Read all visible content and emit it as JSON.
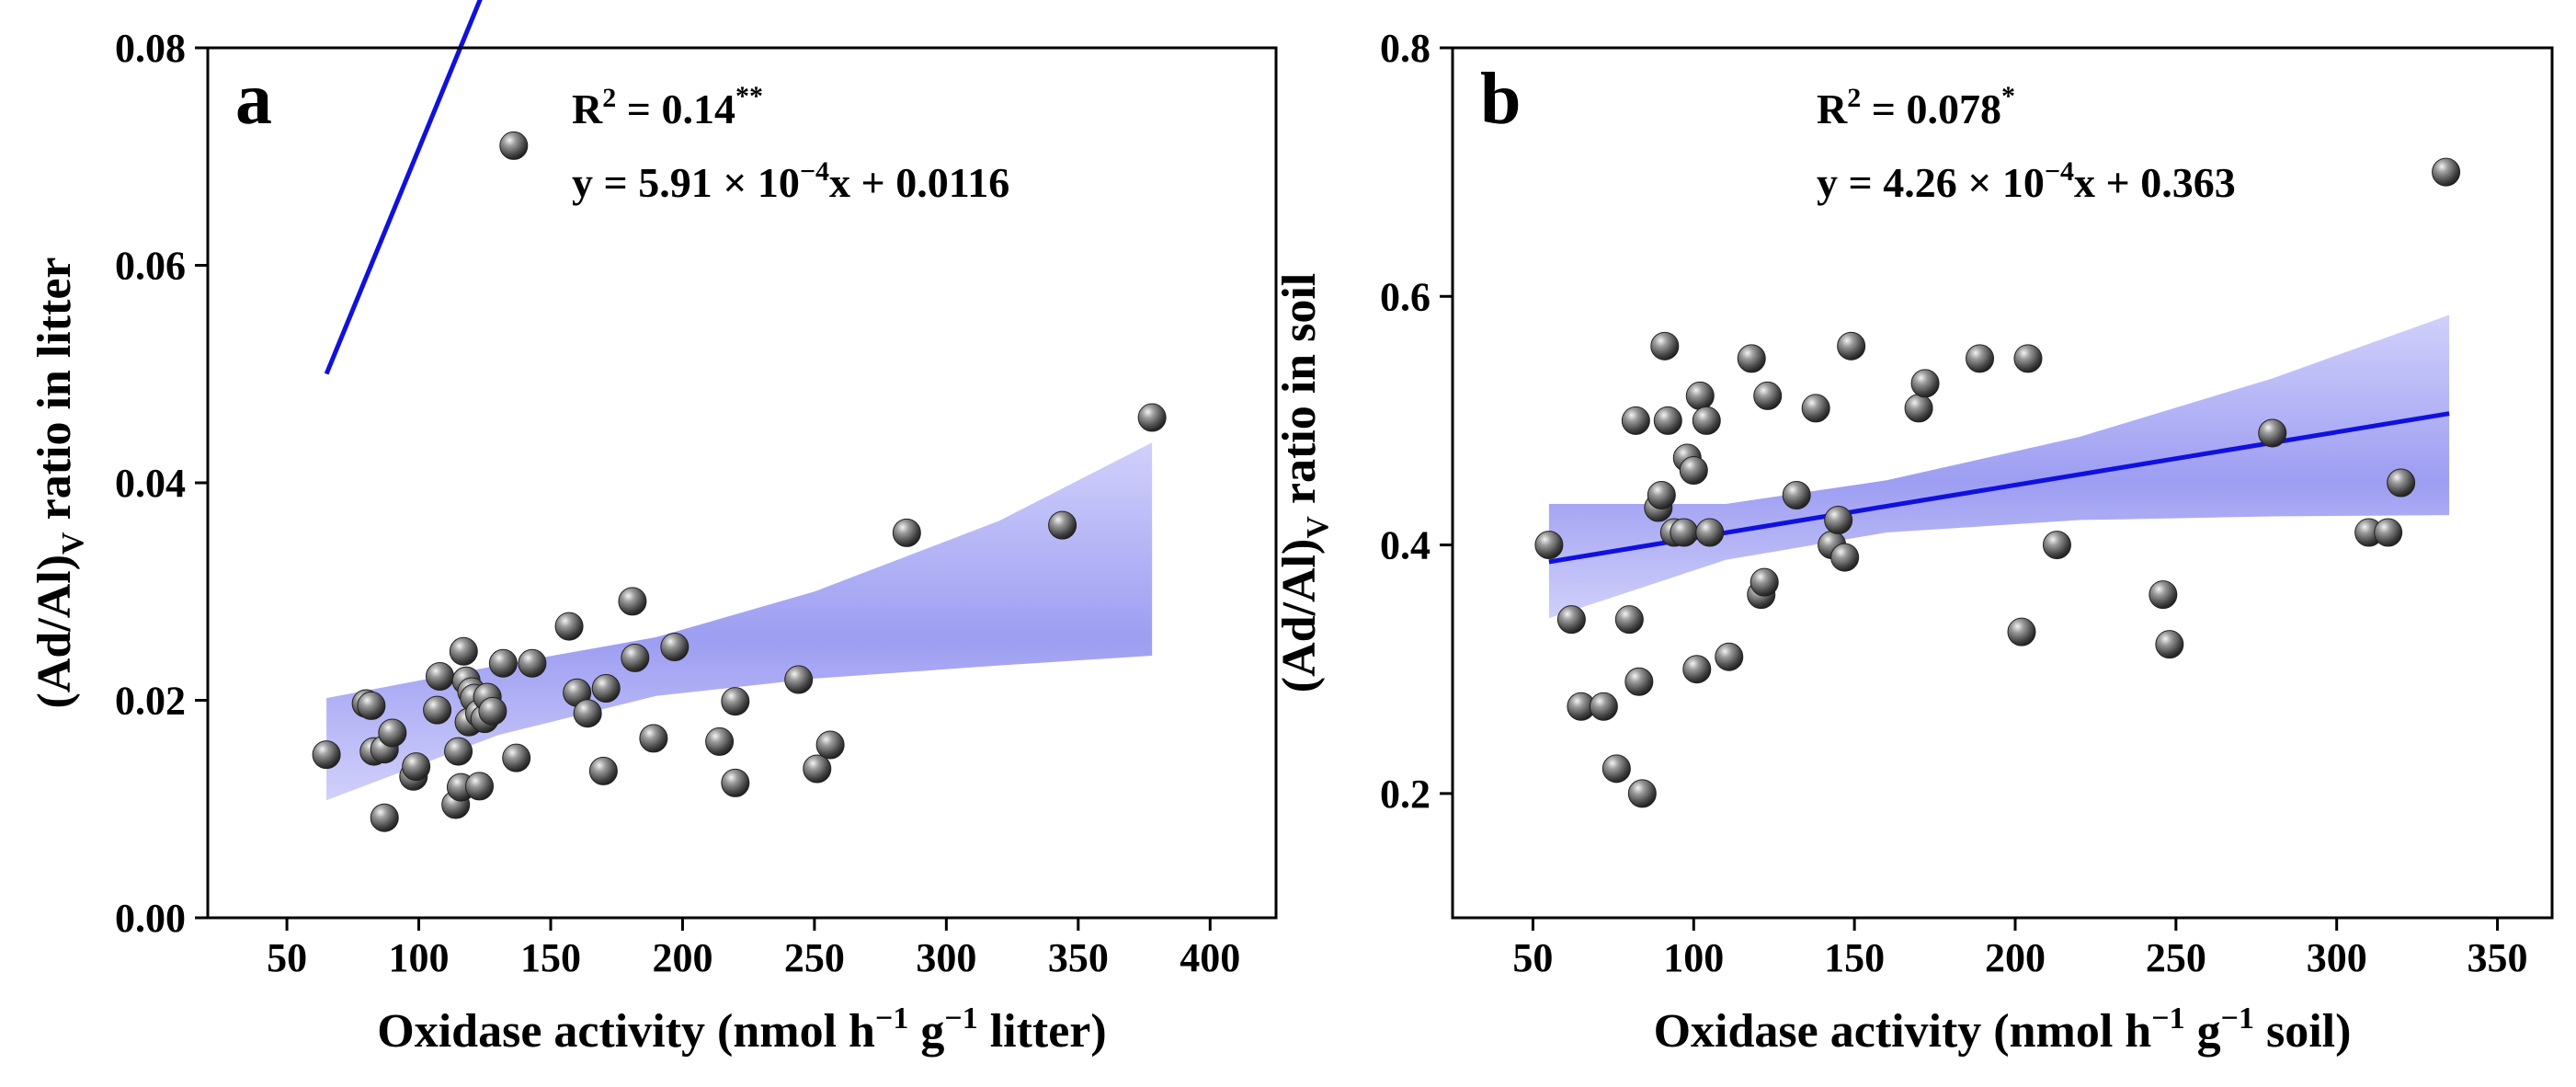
{
  "chart_data": [
    {
      "type": "scatter",
      "panel_label": "a",
      "xlabel_parts": [
        "Oxidase activity (nmol h",
        "−1",
        " g",
        "−1",
        " litter)"
      ],
      "ylabel_parts": [
        "(Ad/Al)",
        "V",
        " ratio in litter"
      ],
      "xlim": [
        20,
        425
      ],
      "ylim": [
        0.0,
        0.08
      ],
      "xticks": [
        50,
        100,
        150,
        200,
        250,
        300,
        350,
        400
      ],
      "yticks": [
        0.0,
        0.02,
        0.04,
        0.06,
        0.08
      ],
      "ytick_labels": [
        "0.00",
        "0.02",
        "0.04",
        "0.06",
        "0.08"
      ],
      "annotation": {
        "r2_prefix": "R",
        "r2_sup": "2",
        "r2_value": " = 0.14",
        "r2_stars": "**",
        "eq_prefix": "y = 5.91 × 10",
        "eq_exp": "−4",
        "eq_suffix": "x + 0.0116"
      },
      "fit": {
        "slope": 0.000591,
        "intercept": 0.0116,
        "x_range": [
          65,
          378
        ]
      },
      "ci_band": {
        "x": [
          65,
          130,
          190,
          250,
          320,
          378
        ],
        "upper": [
          0.0202,
          0.0232,
          0.0258,
          0.03,
          0.0365,
          0.0437
        ],
        "lower": [
          0.0108,
          0.0168,
          0.0204,
          0.022,
          0.0232,
          0.0241
        ]
      },
      "points": [
        [
          65,
          0.015
        ],
        [
          80,
          0.0197
        ],
        [
          82,
          0.0195
        ],
        [
          83,
          0.0153
        ],
        [
          87,
          0.0155
        ],
        [
          87,
          0.0092
        ],
        [
          90,
          0.017
        ],
        [
          98,
          0.013
        ],
        [
          99,
          0.0139
        ],
        [
          107,
          0.0191
        ],
        [
          108,
          0.0222
        ],
        [
          114,
          0.0104
        ],
        [
          115,
          0.0153
        ],
        [
          116,
          0.012
        ],
        [
          117,
          0.0245
        ],
        [
          118,
          0.0218
        ],
        [
          119,
          0.018
        ],
        [
          120,
          0.0208
        ],
        [
          121,
          0.0202
        ],
        [
          123,
          0.0121
        ],
        [
          123,
          0.0188
        ],
        [
          125,
          0.0183
        ],
        [
          126,
          0.0203
        ],
        [
          128,
          0.019
        ],
        [
          132,
          0.0234
        ],
        [
          136,
          0.071
        ],
        [
          137,
          0.0147
        ],
        [
          143,
          0.0234
        ],
        [
          157,
          0.0268
        ],
        [
          160,
          0.0207
        ],
        [
          164,
          0.0188
        ],
        [
          170,
          0.0135
        ],
        [
          171,
          0.0211
        ],
        [
          181,
          0.0291
        ],
        [
          182,
          0.0239
        ],
        [
          189,
          0.0165
        ],
        [
          197,
          0.0249
        ],
        [
          214,
          0.0162
        ],
        [
          220,
          0.0199
        ],
        [
          220,
          0.0124
        ],
        [
          244,
          0.0219
        ],
        [
          251,
          0.0137
        ],
        [
          256,
          0.0159
        ],
        [
          285,
          0.0354
        ],
        [
          344,
          0.0361
        ],
        [
          378,
          0.046
        ]
      ]
    },
    {
      "type": "scatter",
      "panel_label": "b",
      "xlabel_parts": [
        "Oxidase activity (nmol h",
        "−1",
        " g",
        "−1",
        " soil)"
      ],
      "ylabel_parts": [
        "(Ad/Al)",
        "V",
        " ratio in soil"
      ],
      "xlim": [
        25,
        367
      ],
      "ylim": [
        0.1,
        0.8
      ],
      "xticks": [
        50,
        100,
        150,
        200,
        250,
        300,
        350
      ],
      "yticks": [
        0.2,
        0.4,
        0.6,
        0.8
      ],
      "ytick_labels": [
        "0.2",
        "0.4",
        "0.6",
        "0.8"
      ],
      "annotation": {
        "r2_prefix": "R",
        "r2_sup": "2",
        "r2_value": " = 0.078",
        "r2_stars": "*",
        "eq_prefix": "y = 4.26 × 10",
        "eq_exp": "−4",
        "eq_suffix": "x + 0.363"
      },
      "fit": {
        "slope": 0.000426,
        "intercept": 0.363,
        "x_range": [
          55,
          335
        ]
      },
      "ci_band": {
        "x": [
          55,
          110,
          160,
          220,
          280,
          335
        ],
        "upper": [
          0.433,
          0.433,
          0.452,
          0.487,
          0.534,
          0.585
        ],
        "lower": [
          0.341,
          0.388,
          0.41,
          0.42,
          0.423,
          0.424
        ]
      },
      "points": [
        [
          55,
          0.4
        ],
        [
          62,
          0.34
        ],
        [
          65,
          0.27
        ],
        [
          72,
          0.27
        ],
        [
          76,
          0.22
        ],
        [
          80,
          0.34
        ],
        [
          82,
          0.5
        ],
        [
          83,
          0.29
        ],
        [
          84,
          0.2
        ],
        [
          89,
          0.43
        ],
        [
          90,
          0.44
        ],
        [
          91,
          0.56
        ],
        [
          92,
          0.5
        ],
        [
          94,
          0.41
        ],
        [
          97,
          0.41
        ],
        [
          98,
          0.47
        ],
        [
          100,
          0.46
        ],
        [
          101,
          0.3
        ],
        [
          102,
          0.52
        ],
        [
          104,
          0.5
        ],
        [
          105,
          0.41
        ],
        [
          111,
          0.31
        ],
        [
          118,
          0.55
        ],
        [
          121,
          0.36
        ],
        [
          122,
          0.37
        ],
        [
          123,
          0.52
        ],
        [
          132,
          0.44
        ],
        [
          138,
          0.51
        ],
        [
          143,
          0.4
        ],
        [
          145,
          0.42
        ],
        [
          147,
          0.39
        ],
        [
          149,
          0.56
        ],
        [
          170,
          0.51
        ],
        [
          172,
          0.53
        ],
        [
          189,
          0.55
        ],
        [
          202,
          0.33
        ],
        [
          204,
          0.55
        ],
        [
          213,
          0.4
        ],
        [
          246,
          0.36
        ],
        [
          248,
          0.32
        ],
        [
          280,
          0.49
        ],
        [
          310,
          0.41
        ],
        [
          316,
          0.41
        ],
        [
          320,
          0.45
        ],
        [
          334,
          0.7
        ]
      ]
    }
  ]
}
